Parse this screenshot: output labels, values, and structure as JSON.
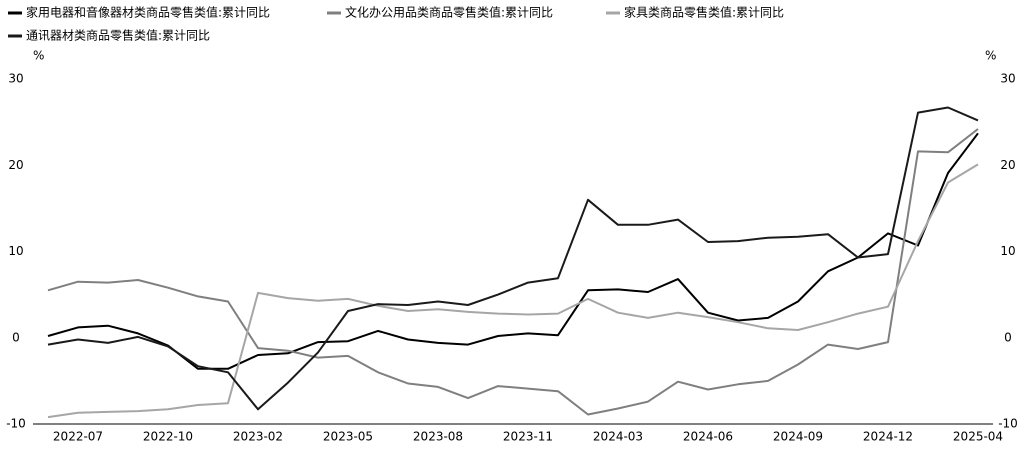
{
  "chart_data": {
    "type": "line",
    "y_unit": "%",
    "y2_unit": "%",
    "categories": [
      null,
      "2022-07",
      null,
      null,
      "2022-10",
      null,
      null,
      "2023-02",
      null,
      null,
      "2023-05",
      null,
      null,
      "2023-08",
      null,
      null,
      "2023-11",
      null,
      null,
      "2024-03",
      null,
      null,
      "2024-06",
      null,
      null,
      "2024-09",
      null,
      null,
      "2024-12",
      null,
      null,
      "2025-04"
    ],
    "series": [
      {
        "name": "家用电器和音像器材类商品零售类值:累计同比",
        "color": "#000000",
        "values": [
          0.2,
          1.2,
          1.4,
          0.5,
          -0.9,
          -3.6,
          -3.6,
          -2.0,
          -1.8,
          -0.5,
          -0.4,
          0.8,
          -0.2,
          -0.6,
          -0.8,
          0.2,
          0.5,
          0.3,
          5.5,
          5.6,
          5.3,
          6.8,
          2.9,
          2.0,
          2.3,
          4.2,
          7.7,
          9.3,
          12.1,
          10.7,
          19.1,
          23.7
        ]
      },
      {
        "name": "文化办公用品类商品零售类值:累计同比",
        "color": "#7f7f7f",
        "values": [
          5.5,
          6.5,
          6.4,
          6.7,
          5.8,
          4.8,
          4.2,
          -1.2,
          -1.5,
          -2.3,
          -2.1,
          -4.0,
          -5.3,
          -5.7,
          -7.0,
          -5.6,
          -5.9,
          -6.2,
          -8.9,
          -8.2,
          -7.4,
          -5.1,
          -6.0,
          -5.4,
          -5.0,
          -3.1,
          -0.8,
          -1.3,
          -0.5,
          21.6,
          21.5,
          24.2
        ]
      },
      {
        "name": "家具类商品零售类值:累计同比",
        "color": "#a6a6a6",
        "values": [
          -9.2,
          -8.7,
          -8.6,
          -8.5,
          -8.3,
          -7.8,
          -7.6,
          5.2,
          4.6,
          4.3,
          4.5,
          3.7,
          3.1,
          3.3,
          3.0,
          2.8,
          2.7,
          2.8,
          4.5,
          2.9,
          2.3,
          2.9,
          2.4,
          1.8,
          1.1,
          0.9,
          1.8,
          2.8,
          3.6,
          11.2,
          18.0,
          20.1
        ]
      },
      {
        "name": "通讯器材类商品零售类值:累计同比",
        "color": "#1a1a1a",
        "values": [
          -0.8,
          -0.2,
          -0.6,
          0.1,
          -1.0,
          -3.3,
          -4.0,
          -8.3,
          -5.2,
          -1.7,
          3.1,
          3.9,
          3.8,
          4.2,
          3.8,
          5.0,
          6.4,
          6.9,
          16.0,
          13.1,
          13.1,
          13.7,
          11.1,
          11.2,
          11.6,
          11.7,
          12.0,
          9.3,
          9.7,
          26.1,
          26.7,
          25.2
        ]
      }
    ],
    "ylim": [
      -10,
      30
    ],
    "yticks": [
      -10,
      0,
      10,
      20,
      30
    ],
    "y2lim": [
      -10,
      30
    ],
    "y2ticks": [
      -10,
      0,
      10,
      20,
      30
    ],
    "grid": false
  }
}
